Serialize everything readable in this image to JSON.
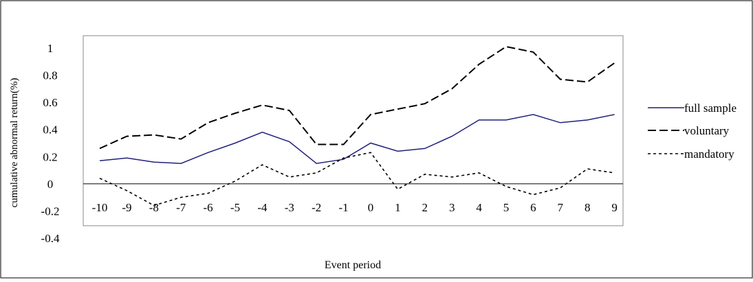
{
  "chart_data": {
    "type": "line",
    "title": "",
    "xlabel": "Event period",
    "ylabel": "cumulative abnormal return(%)",
    "categories": [
      "-10",
      "-9",
      "-8",
      "-7",
      "-6",
      "-5",
      "-4",
      "-3",
      "-2",
      "-1",
      "0",
      "1",
      "2",
      "3",
      "4",
      "5",
      "6",
      "7",
      "8",
      "9"
    ],
    "y_ticks": [
      "1",
      "0.8",
      "0.6",
      "0.4",
      "0.2",
      "0",
      "-0.2",
      "-0.4"
    ],
    "ylim": [
      -0.4,
      1.0
    ],
    "grid": false,
    "legend_position": "right",
    "series": [
      {
        "name": "full sample",
        "color": "#1f1f7a",
        "dash": "solid",
        "values": [
          0.17,
          0.19,
          0.16,
          0.15,
          0.23,
          0.3,
          0.38,
          0.31,
          0.15,
          0.18,
          0.3,
          0.24,
          0.26,
          0.35,
          0.47,
          0.47,
          0.51,
          0.45,
          0.47,
          0.51
        ]
      },
      {
        "name": "voluntary",
        "color": "#000000",
        "dash": "dashed",
        "values": [
          0.26,
          0.35,
          0.36,
          0.33,
          0.45,
          0.52,
          0.58,
          0.54,
          0.29,
          0.29,
          0.51,
          0.55,
          0.59,
          0.7,
          0.88,
          1.01,
          0.97,
          0.77,
          0.75,
          0.89
        ]
      },
      {
        "name": "mandatory",
        "color": "#000000",
        "dash": "dotted",
        "values": [
          0.04,
          -0.05,
          -0.16,
          -0.1,
          -0.07,
          0.02,
          0.14,
          0.05,
          0.08,
          0.19,
          0.23,
          -0.04,
          0.07,
          0.05,
          0.08,
          -0.02,
          -0.08,
          -0.03,
          0.11,
          0.08
        ]
      }
    ]
  }
}
